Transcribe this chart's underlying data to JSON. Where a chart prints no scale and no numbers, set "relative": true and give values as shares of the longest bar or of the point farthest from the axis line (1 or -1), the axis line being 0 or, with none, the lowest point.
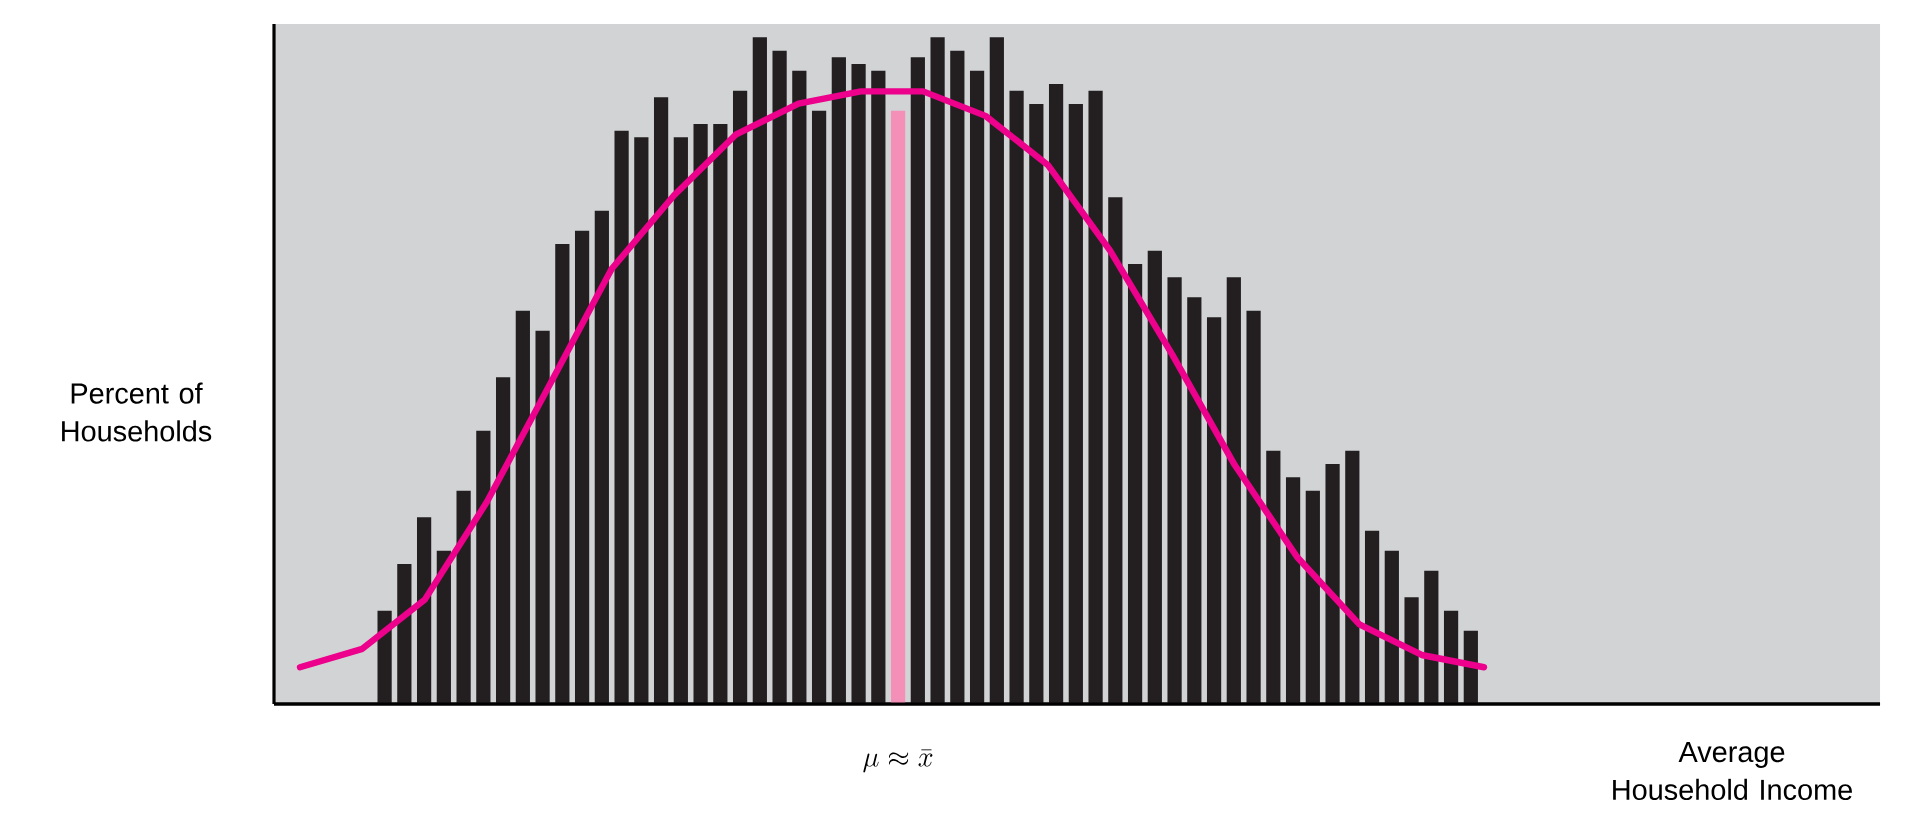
{
  "chart_data": [
    {
      "type": "bar",
      "relative": true,
      "ylabel": "Percent of Households",
      "xlabel": "Average Household Income",
      "annotations": [
        {
          "text": "\\mu \\approx \\bar{x}"
        }
      ],
      "categories": [
        null,
        null,
        null,
        null,
        null,
        null,
        null,
        null,
        null,
        null,
        null,
        null,
        null,
        null,
        null,
        null,
        null,
        null,
        null,
        null,
        null,
        null,
        null,
        null,
        null,
        null,
        null,
        null,
        null,
        null,
        null,
        null,
        null,
        null,
        null,
        null,
        null,
        null,
        null,
        null,
        null,
        null,
        null,
        null,
        null,
        null,
        null,
        null,
        null,
        null,
        null,
        null,
        null,
        null,
        null,
        null
      ],
      "values": [
        0.14,
        0.21,
        0.28,
        0.23,
        0.32,
        0.41,
        0.49,
        0.59,
        0.56,
        0.69,
        0.71,
        0.74,
        0.86,
        0.85,
        0.91,
        0.85,
        0.87,
        0.87,
        0.92,
        1.0,
        0.98,
        0.95,
        0.89,
        0.97,
        0.96,
        0.95,
        0.89,
        0.97,
        1.0,
        0.98,
        0.95,
        1.0,
        0.92,
        0.9,
        0.93,
        0.9,
        0.92,
        0.76,
        0.66,
        0.68,
        0.64,
        0.61,
        0.58,
        0.64,
        0.59,
        0.38,
        0.34,
        0.32,
        0.36,
        0.38,
        0.26,
        0.23,
        0.16,
        0.2,
        0.14,
        0.11
      ],
      "colors": [
        "#231f20",
        "#231f20",
        "#231f20",
        "#231f20",
        "#231f20",
        "#231f20",
        "#231f20",
        "#231f20",
        "#231f20",
        "#231f20",
        "#231f20",
        "#231f20",
        "#231f20",
        "#231f20",
        "#231f20",
        "#231f20",
        "#231f20",
        "#231f20",
        "#231f20",
        "#231f20",
        "#231f20",
        "#231f20",
        "#231f20",
        "#231f20",
        "#231f20",
        "#231f20",
        "#f48fb7",
        "#231f20",
        "#231f20",
        "#231f20",
        "#231f20",
        "#231f20",
        "#231f20",
        "#231f20",
        "#231f20",
        "#231f20",
        "#231f20",
        "#231f20",
        "#231f20",
        "#231f20",
        "#231f20",
        "#231f20",
        "#231f20",
        "#231f20",
        "#231f20",
        "#231f20",
        "#231f20",
        "#231f20",
        "#231f20",
        "#231f20",
        "#231f20",
        "#231f20",
        "#231f20",
        "#231f20",
        "#231f20",
        "#231f20"
      ]
    },
    {
      "type": "line",
      "relative": true,
      "color": "#ec008c",
      "categories": [
        null,
        null,
        null,
        null,
        null,
        null,
        null,
        null,
        null,
        null,
        null,
        null,
        null,
        null,
        null,
        null,
        null,
        null,
        null,
        null
      ],
      "values": [
        0.06,
        0.09,
        0.17,
        0.33,
        0.52,
        0.71,
        0.83,
        0.93,
        0.98,
        1.0,
        1.0,
        0.96,
        0.88,
        0.74,
        0.57,
        0.39,
        0.24,
        0.13,
        0.08,
        0.06
      ]
    }
  ]
}
